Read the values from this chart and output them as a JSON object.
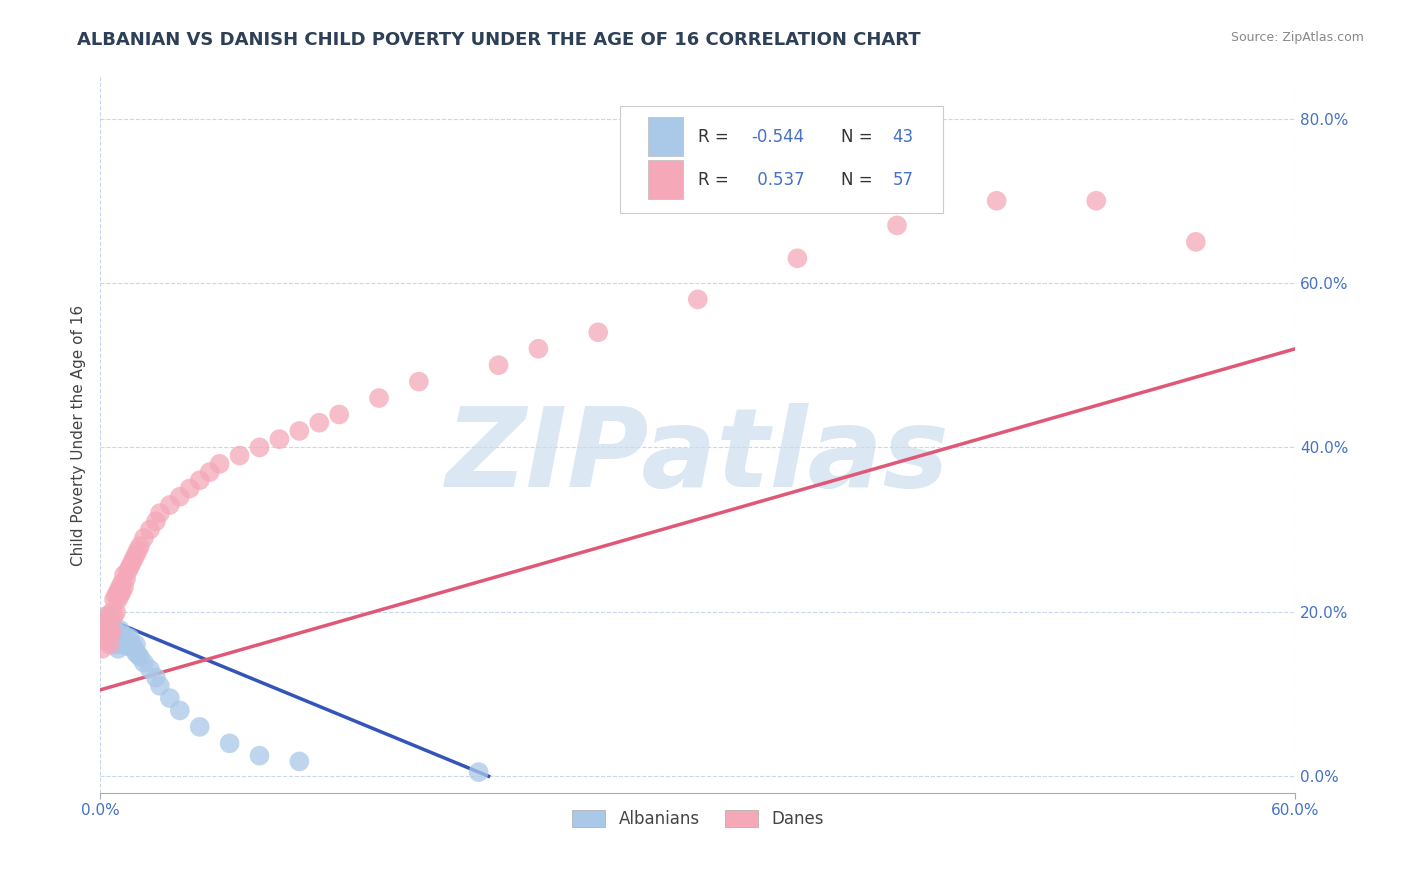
{
  "title": "ALBANIAN VS DANISH CHILD POVERTY UNDER THE AGE OF 16 CORRELATION CHART",
  "source_text": "Source: ZipAtlas.com",
  "ylabel": "Child Poverty Under the Age of 16",
  "xlim": [
    0.0,
    0.6
  ],
  "ylim": [
    -0.02,
    0.85
  ],
  "x_ticks": [
    0.0,
    0.6
  ],
  "x_tick_labels": [
    "0.0%",
    "60.0%"
  ],
  "y_ticks": [
    0.0,
    0.2,
    0.4,
    0.6,
    0.8
  ],
  "y_tick_labels": [
    "0.0%",
    "20.0%",
    "40.0%",
    "60.0%",
    "80.0%"
  ],
  "albanian_color": "#aac8e8",
  "danish_color": "#f4a8b8",
  "albanian_line_color": "#3355bb",
  "danish_line_color": "#e05878",
  "watermark": "ZIPatlas",
  "watermark_color": "#ccdded",
  "label1": "Albanians",
  "label2": "Danes",
  "albanian_x": [
    0.002,
    0.003,
    0.003,
    0.005,
    0.005,
    0.005,
    0.006,
    0.007,
    0.007,
    0.008,
    0.008,
    0.008,
    0.009,
    0.009,
    0.01,
    0.01,
    0.01,
    0.011,
    0.011,
    0.012,
    0.012,
    0.013,
    0.013,
    0.014,
    0.015,
    0.015,
    0.016,
    0.017,
    0.018,
    0.018,
    0.019,
    0.02,
    0.022,
    0.025,
    0.028,
    0.03,
    0.035,
    0.04,
    0.05,
    0.065,
    0.08,
    0.1,
    0.19
  ],
  "albanian_y": [
    0.175,
    0.18,
    0.195,
    0.17,
    0.175,
    0.185,
    0.165,
    0.17,
    0.18,
    0.16,
    0.165,
    0.175,
    0.155,
    0.17,
    0.165,
    0.17,
    0.178,
    0.168,
    0.172,
    0.16,
    0.168,
    0.162,
    0.17,
    0.158,
    0.162,
    0.168,
    0.16,
    0.155,
    0.15,
    0.16,
    0.148,
    0.145,
    0.138,
    0.13,
    0.12,
    0.11,
    0.095,
    0.08,
    0.06,
    0.04,
    0.025,
    0.018,
    0.005
  ],
  "danish_x": [
    0.001,
    0.002,
    0.003,
    0.003,
    0.004,
    0.004,
    0.005,
    0.005,
    0.006,
    0.006,
    0.007,
    0.007,
    0.008,
    0.008,
    0.009,
    0.009,
    0.01,
    0.01,
    0.011,
    0.011,
    0.012,
    0.012,
    0.013,
    0.014,
    0.015,
    0.016,
    0.017,
    0.018,
    0.019,
    0.02,
    0.022,
    0.025,
    0.028,
    0.03,
    0.035,
    0.04,
    0.045,
    0.05,
    0.055,
    0.06,
    0.07,
    0.08,
    0.09,
    0.1,
    0.11,
    0.12,
    0.14,
    0.16,
    0.2,
    0.22,
    0.25,
    0.3,
    0.35,
    0.4,
    0.45,
    0.5,
    0.55
  ],
  "danish_y": [
    0.155,
    0.175,
    0.165,
    0.185,
    0.17,
    0.195,
    0.16,
    0.18,
    0.2,
    0.175,
    0.195,
    0.215,
    0.2,
    0.22,
    0.215,
    0.225,
    0.22,
    0.23,
    0.225,
    0.235,
    0.23,
    0.245,
    0.24,
    0.25,
    0.255,
    0.26,
    0.265,
    0.27,
    0.275,
    0.28,
    0.29,
    0.3,
    0.31,
    0.32,
    0.33,
    0.34,
    0.35,
    0.36,
    0.37,
    0.38,
    0.39,
    0.4,
    0.41,
    0.42,
    0.43,
    0.44,
    0.46,
    0.48,
    0.5,
    0.52,
    0.54,
    0.58,
    0.63,
    0.67,
    0.7,
    0.7,
    0.65
  ],
  "albanian_trendline_x": [
    0.0,
    0.195
  ],
  "albanian_trendline_y": [
    0.195,
    0.0
  ],
  "danish_trendline_x": [
    0.0,
    0.6
  ],
  "danish_trendline_y": [
    0.105,
    0.52
  ],
  "background_color": "#ffffff",
  "grid_color": "#c8d8e8",
  "tick_color": "#4472c4",
  "title_color": "#2E4057",
  "axis_color": "#aaaaaa"
}
